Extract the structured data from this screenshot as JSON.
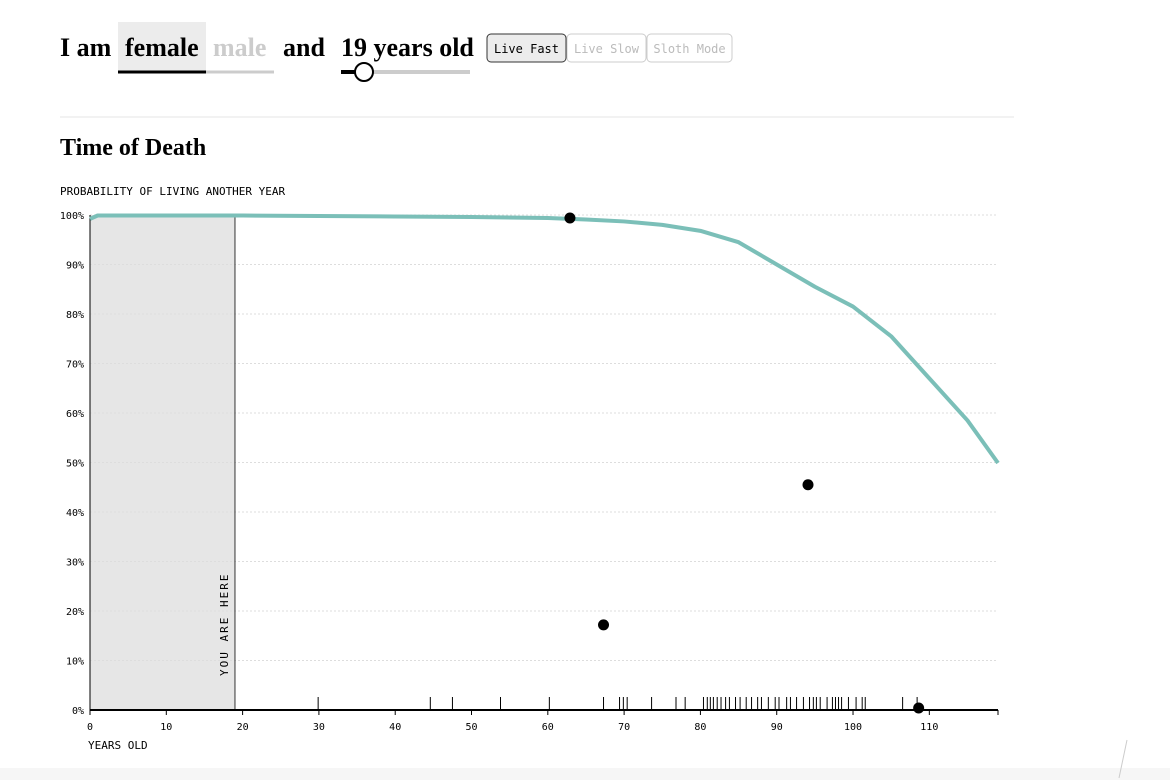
{
  "controls": {
    "prefix": "I am",
    "sex_options": [
      "female",
      "male"
    ],
    "selected_sex": 0,
    "joiner": "and",
    "age_label": "19 years old",
    "modes": [
      "Live Fast",
      "Live Slow",
      "Sloth Mode"
    ],
    "selected_mode": 0
  },
  "chart_data": {
    "type": "line",
    "title": "Time of Death",
    "y_label": "PROBABILITY OF LIVING ANOTHER YEAR",
    "x_label": "YEARS OLD",
    "xlim": [
      0,
      119
    ],
    "xticks": [
      0,
      10,
      20,
      30,
      40,
      50,
      60,
      70,
      80,
      90,
      100,
      110
    ],
    "ylim": [
      0,
      100
    ],
    "yticks": [
      {
        "value": 0,
        "label": "0%"
      },
      {
        "value": 10,
        "label": "10%"
      },
      {
        "value": 20,
        "label": "20%"
      },
      {
        "value": 30,
        "label": "30%"
      },
      {
        "value": 40,
        "label": "40%"
      },
      {
        "value": 50,
        "label": "50%"
      },
      {
        "value": 60,
        "label": "60%"
      },
      {
        "value": 70,
        "label": "70%"
      },
      {
        "value": 80,
        "label": "80%"
      },
      {
        "value": 90,
        "label": "90%"
      },
      {
        "value": 100,
        "label": "100%"
      }
    ],
    "grid": true,
    "line": {
      "color": "#7bbfb8",
      "x": [
        0,
        1,
        10,
        20,
        30,
        40,
        50,
        60,
        65,
        70,
        75,
        80,
        85,
        90,
        95,
        100,
        105,
        110,
        115,
        119
      ],
      "values": [
        99.2,
        99.9,
        99.9,
        99.9,
        99.8,
        99.7,
        99.6,
        99.4,
        99.1,
        98.7,
        98,
        96.8,
        94.5,
        90,
        85.5,
        81.5,
        75.5,
        67,
        58.5,
        49.9
      ]
    },
    "points": {
      "color": "#000000",
      "x": [
        62.9,
        67.3,
        94.1,
        108.6
      ],
      "values": [
        99.4,
        17.2,
        45.5,
        0.4
      ]
    },
    "rug": {
      "x": [
        29.9,
        44.6,
        47.5,
        53.8,
        60.2,
        67.3,
        69.4,
        69.9,
        70.4,
        73.6,
        76.8,
        78.0,
        80.4,
        80.9,
        81.3,
        81.7,
        82.2,
        82.7,
        83.3,
        83.8,
        84.6,
        85.2,
        86.0,
        86.7,
        87.5,
        88.0,
        88.9,
        89.8,
        90.3,
        91.3,
        91.8,
        92.6,
        93.5,
        94.3,
        94.8,
        95.2,
        95.7,
        96.6,
        97.3,
        97.7,
        98.1,
        98.5,
        99.4,
        100.4,
        101.2,
        101.6,
        106.5,
        108.4
      ]
    },
    "you_are_here": {
      "label": "YOU ARE HERE",
      "x": 19
    }
  }
}
